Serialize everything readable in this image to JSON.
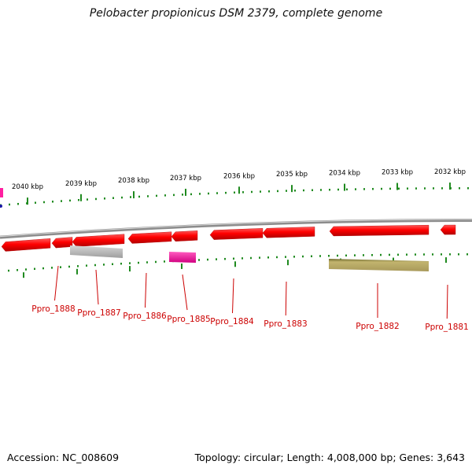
{
  "title": "Pelobacter propionicus DSM 2379, complete genome",
  "footer": {
    "accession": "Accession: NC_008609",
    "summary": "Topology: circular; Length: 4,008,000 bp; Genes: 3,643"
  },
  "colors": {
    "background": "#ffffff",
    "backbone": "#8c8c8c",
    "tick": "#1f8a1f",
    "cds": "#ff0000",
    "gene_label": "#cc0000",
    "rna_gray": "#bdbdbd",
    "rna_pink": "#ff1fa0",
    "rna_olive": "#c2b46e"
  },
  "scale_labels": [
    {
      "kbp": 2040,
      "text": "2040 kbp"
    },
    {
      "kbp": 2039,
      "text": "2039 kbp"
    },
    {
      "kbp": 2038,
      "text": "2038 kbp"
    },
    {
      "kbp": 2037,
      "text": "2037 kbp"
    },
    {
      "kbp": 2036,
      "text": "2036 kbp"
    },
    {
      "kbp": 2035,
      "text": "2035 kbp"
    },
    {
      "kbp": 2034,
      "text": "2034 kbp"
    },
    {
      "kbp": 2033,
      "text": "2033 kbp"
    },
    {
      "kbp": 2032,
      "text": "2032 kbp"
    }
  ],
  "genes": [
    {
      "name": "Ppro_1888",
      "color": "cds"
    },
    {
      "name": "Ppro_1887",
      "color": "cds"
    },
    {
      "name": "Ppro_1886",
      "color": "cds"
    },
    {
      "name": "Ppro_1885",
      "color": "cds"
    },
    {
      "name": "Ppro_1884",
      "color": "cds"
    },
    {
      "name": "Ppro_1883",
      "color": "cds"
    },
    {
      "name": "Ppro_1882",
      "color": "cds"
    },
    {
      "name": "Ppro_1881",
      "color": "cds"
    }
  ]
}
